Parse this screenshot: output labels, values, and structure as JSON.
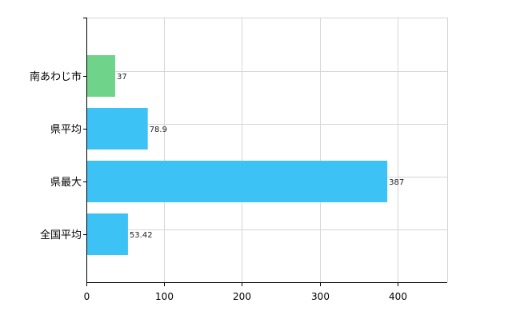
{
  "chart_data": {
    "type": "bar",
    "orientation": "horizontal",
    "title": "",
    "xlabel": "",
    "ylabel": "",
    "categories": [
      "南あわじ市",
      "県平均",
      "県最大",
      "全国平均"
    ],
    "values": [
      37,
      78.9,
      387,
      53.42
    ],
    "value_labels": [
      "37",
      "78.9",
      "387",
      "53.42"
    ],
    "bar_colors": [
      "#6fd38a",
      "#3dc2f5",
      "#3dc2f5",
      "#3dc2f5"
    ],
    "xlim": [
      0,
      464
    ],
    "xticks": [
      0,
      100,
      200,
      300,
      400
    ],
    "xtick_labels": [
      "0",
      "100",
      "200",
      "300",
      "400"
    ],
    "grid": true,
    "legend": "none"
  }
}
